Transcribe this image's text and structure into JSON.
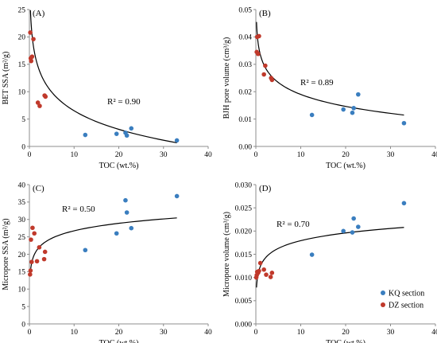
{
  "colors": {
    "KQ": "#3a7ebf",
    "DZ": "#c0392b",
    "axis": "#8c8c8c",
    "fit": "#000000"
  },
  "legend": {
    "placement": "bottom-right",
    "items": [
      {
        "series": "KQ",
        "label": "KQ section"
      },
      {
        "series": "DZ",
        "label": "DZ section"
      }
    ]
  },
  "chart_data": [
    {
      "type": "scatter",
      "panel_label": "(A)",
      "xlabel": "TOC (wt.%)",
      "ylabel": "BET SSA (m²/g)",
      "xlim": [
        0,
        40
      ],
      "ylim": [
        0,
        25
      ],
      "xticks": [
        0,
        10,
        20,
        30,
        40
      ],
      "yticks": [
        0,
        5,
        10,
        15,
        20,
        25
      ],
      "ytick_decimals": 0,
      "grid": false,
      "r2_label": "R² = 0.90",
      "fit": {
        "model": "log",
        "a": 17.8,
        "b": -4.9
      },
      "series": [
        {
          "name": "KQ section",
          "key": "KQ",
          "x": [
            12.5,
            19.5,
            21.5,
            21.8,
            22.8,
            33.0
          ],
          "y": [
            2.1,
            2.3,
            2.5,
            2.0,
            3.3,
            1.1
          ]
        },
        {
          "name": "DZ section",
          "key": "DZ",
          "x": [
            0.2,
            0.3,
            0.4,
            0.6,
            0.9,
            1.9,
            2.3,
            3.4,
            3.6
          ],
          "y": [
            20.8,
            16.1,
            15.6,
            16.4,
            19.6,
            8.0,
            7.4,
            9.3,
            9.1
          ]
        }
      ]
    },
    {
      "type": "scatter",
      "panel_label": "(B)",
      "xlabel": "TOC (wt.%)",
      "ylabel": "BJH pore volume (cm³/g)",
      "xlim": [
        0,
        40
      ],
      "ylim": [
        0,
        0.05
      ],
      "xticks": [
        0,
        10,
        20,
        30,
        40
      ],
      "yticks": [
        0,
        0.01,
        0.02,
        0.03,
        0.04,
        0.05
      ],
      "ytick_decimals": 2,
      "grid": false,
      "r2_label": "R² = 0.89",
      "fit": {
        "model": "log",
        "a": 0.0335,
        "b": -0.0063
      },
      "series": [
        {
          "name": "KQ section",
          "key": "KQ",
          "x": [
            12.5,
            19.5,
            21.5,
            21.8,
            22.8,
            33.0
          ],
          "y": [
            0.0115,
            0.0135,
            0.0123,
            0.014,
            0.019,
            0.0085
          ]
        },
        {
          "name": "DZ section",
          "key": "DZ",
          "x": [
            0.2,
            0.3,
            0.5,
            0.7,
            1.8,
            2.1,
            3.4,
            3.6
          ],
          "y": [
            0.0345,
            0.04,
            0.0338,
            0.0403,
            0.0263,
            0.0295,
            0.025,
            0.0243
          ]
        }
      ]
    },
    {
      "type": "scatter",
      "panel_label": "(C)",
      "xlabel": "TOC (wt.%)",
      "ylabel": "Micropore  SSA (m²/g)",
      "xlim": [
        0,
        40
      ],
      "ylim": [
        0,
        40
      ],
      "xticks": [
        0,
        10,
        20,
        30,
        40
      ],
      "yticks": [
        0,
        5,
        10,
        15,
        20,
        25,
        30,
        35,
        40
      ],
      "ytick_decimals": 0,
      "grid": false,
      "r2_label": "R² = 0.50",
      "fit": {
        "model": "log",
        "a": 19.6,
        "b": 3.1
      },
      "series": [
        {
          "name": "KQ section",
          "key": "KQ",
          "x": [
            12.5,
            19.5,
            21.5,
            21.8,
            22.8,
            33.0
          ],
          "y": [
            21.2,
            26.0,
            35.5,
            32.0,
            27.5,
            36.7
          ]
        },
        {
          "name": "DZ section",
          "key": "DZ",
          "x": [
            0.15,
            0.25,
            0.35,
            0.5,
            0.7,
            1.1,
            1.7,
            2.2,
            3.3,
            3.5
          ],
          "y": [
            14.2,
            15.3,
            24.2,
            17.8,
            27.6,
            26.0,
            18.0,
            22.0,
            18.6,
            20.7
          ]
        }
      ]
    },
    {
      "type": "scatter",
      "panel_label": "(D)",
      "xlabel": "TOC (wt.%)",
      "ylabel": "Micropore volume (cm³/g)",
      "xlim": [
        0,
        40
      ],
      "ylim": [
        0,
        0.03
      ],
      "xticks": [
        0,
        10,
        20,
        30,
        40
      ],
      "yticks": [
        0,
        0.005,
        0.01,
        0.015,
        0.02,
        0.025,
        0.03
      ],
      "ytick_decimals": -1,
      "grid": false,
      "r2_label": "R² = 0.70",
      "fit": {
        "model": "log",
        "a": 0.0124,
        "b": 0.0024
      },
      "series": [
        {
          "name": "KQ section",
          "key": "KQ",
          "x": [
            12.5,
            19.5,
            21.5,
            21.8,
            22.8,
            33.0
          ],
          "y": [
            0.0149,
            0.02,
            0.0197,
            0.0227,
            0.0209,
            0.026
          ]
        },
        {
          "name": "DZ section",
          "key": "DZ",
          "x": [
            0.1,
            0.2,
            0.3,
            0.5,
            0.7,
            1.0,
            1.8,
            2.3,
            3.3,
            3.6
          ],
          "y": [
            0.01,
            0.0105,
            0.0112,
            0.011,
            0.0114,
            0.0131,
            0.0117,
            0.0106,
            0.0101,
            0.011
          ]
        }
      ]
    }
  ]
}
